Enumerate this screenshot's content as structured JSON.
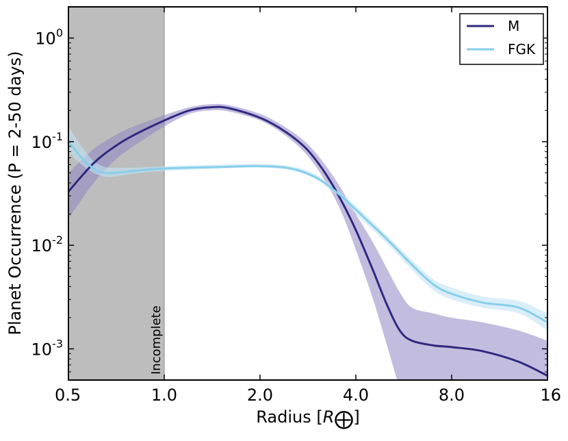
{
  "chart_data": {
    "type": "line",
    "title": "",
    "xlabel": "Radius [R⊕]",
    "xlabel_prefix": "Radius [",
    "xlabel_symbol": "R",
    "xlabel_suffix": "]",
    "ylabel": "Planet Occurrence (P = 2-50 days)",
    "xscale": "log2",
    "yscale": "log10",
    "xlim": [
      0.5,
      16
    ],
    "ylim": [
      0.0005,
      2.0
    ],
    "xticks": [
      {
        "value": 0.5,
        "label": "0.5"
      },
      {
        "value": 1.0,
        "label": "1.0"
      },
      {
        "value": 2.0,
        "label": "2.0"
      },
      {
        "value": 4.0,
        "label": "4.0"
      },
      {
        "value": 8.0,
        "label": "8.0"
      },
      {
        "value": 16,
        "label": "16"
      }
    ],
    "yticks": [
      {
        "value": 1,
        "base": "10",
        "exp": "0"
      },
      {
        "value": 0.1,
        "base": "10",
        "exp": "-1"
      },
      {
        "value": 0.01,
        "base": "10",
        "exp": "-2"
      },
      {
        "value": 0.001,
        "base": "10",
        "exp": "-3"
      }
    ],
    "shaded_region": {
      "x0": 0.5,
      "x1": 1.0,
      "label": "Incomplete",
      "color": "#bdbdbd"
    },
    "legend_position": "top-right",
    "series": [
      {
        "name": "M",
        "color": "#2e2880",
        "band_color": "#8f86c2",
        "x": [
          0.5,
          0.6,
          0.7,
          0.8,
          1.0,
          1.2,
          1.4,
          1.6,
          2.0,
          2.4,
          2.8,
          3.2,
          3.6,
          4.0,
          4.5,
          5.0,
          5.5,
          6.0,
          7.0,
          8.0,
          10.0,
          13.0,
          16.0
        ],
        "y": [
          0.033,
          0.062,
          0.09,
          0.115,
          0.16,
          0.2,
          0.215,
          0.21,
          0.17,
          0.125,
          0.085,
          0.05,
          0.027,
          0.014,
          0.006,
          0.0027,
          0.0015,
          0.0012,
          0.00108,
          0.00104,
          0.00095,
          0.00075,
          0.00055
        ],
        "lower": [
          0.018,
          0.04,
          0.066,
          0.09,
          0.14,
          0.185,
          0.2,
          0.195,
          0.16,
          0.115,
          0.075,
          0.042,
          0.021,
          0.009,
          0.0032,
          0.0011,
          0.0004,
          0.00015,
          0.00012,
          0.00012,
          0.00012,
          0.00012,
          0.00012
        ],
        "upper": [
          0.05,
          0.085,
          0.115,
          0.14,
          0.18,
          0.215,
          0.23,
          0.225,
          0.185,
          0.138,
          0.097,
          0.06,
          0.035,
          0.02,
          0.011,
          0.006,
          0.0035,
          0.0025,
          0.0022,
          0.002,
          0.0018,
          0.0015,
          0.0012
        ]
      },
      {
        "name": "FGK",
        "color": "#87ceeb",
        "band_color": "#bfe3f4",
        "x": [
          0.5,
          0.55,
          0.6,
          0.65,
          0.7,
          0.8,
          1.0,
          1.5,
          2.0,
          2.5,
          3.0,
          3.5,
          4.0,
          5.0,
          6.0,
          7.0,
          8.0,
          10.0,
          13.0,
          16.0
        ],
        "y": [
          0.1,
          0.07,
          0.055,
          0.05,
          0.05,
          0.052,
          0.055,
          0.057,
          0.058,
          0.055,
          0.045,
          0.032,
          0.022,
          0.0115,
          0.0065,
          0.0042,
          0.0034,
          0.0028,
          0.0025,
          0.0018
        ],
        "lower": [
          0.08,
          0.06,
          0.05,
          0.046,
          0.046,
          0.049,
          0.052,
          0.055,
          0.056,
          0.053,
          0.043,
          0.03,
          0.02,
          0.0105,
          0.0058,
          0.0037,
          0.003,
          0.0025,
          0.0022,
          0.0015
        ],
        "upper": [
          0.14,
          0.09,
          0.065,
          0.057,
          0.056,
          0.056,
          0.058,
          0.06,
          0.061,
          0.058,
          0.048,
          0.034,
          0.024,
          0.0125,
          0.0072,
          0.0047,
          0.0039,
          0.0032,
          0.0029,
          0.0022
        ]
      }
    ]
  }
}
